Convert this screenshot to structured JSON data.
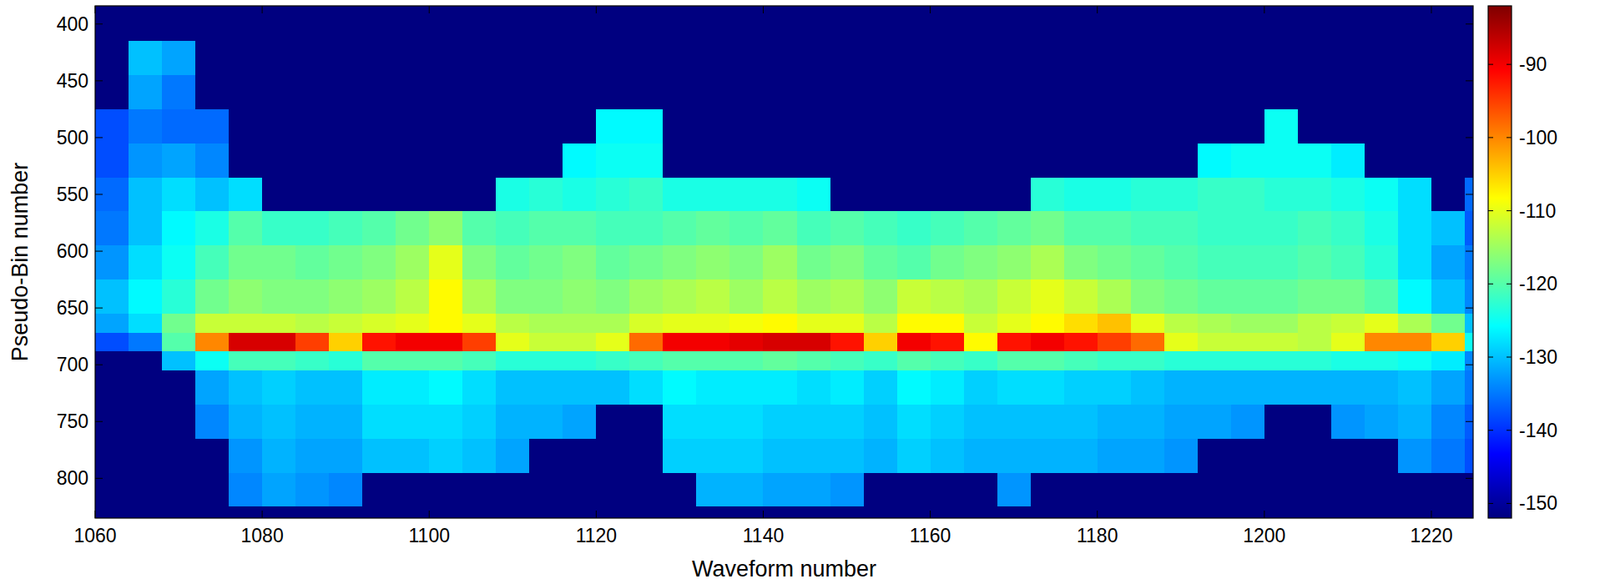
{
  "chart_data": {
    "type": "heatmap",
    "x_label": "Waveform number",
    "y_label": "Pseudo-Bin number",
    "xlim": [
      1060,
      1225
    ],
    "ylim": [
      835,
      384
    ],
    "xticks": [
      1060,
      1080,
      1100,
      1120,
      1140,
      1160,
      1180,
      1200,
      1220
    ],
    "yticks": [
      400,
      450,
      500,
      550,
      600,
      650,
      700,
      750,
      800
    ],
    "clim": [
      -152,
      -82
    ],
    "cticks": [
      -90,
      -100,
      -110,
      -120,
      -130,
      -140,
      -150
    ],
    "x_edges": [
      1060,
      1064,
      1068,
      1072,
      1076,
      1080,
      1084,
      1088,
      1092,
      1096,
      1100,
      1104,
      1108,
      1112,
      1116,
      1120,
      1124,
      1128,
      1132,
      1136,
      1140,
      1144,
      1148,
      1152,
      1156,
      1160,
      1164,
      1168,
      1172,
      1176,
      1180,
      1184,
      1188,
      1192,
      1196,
      1200,
      1204,
      1208,
      1212,
      1216,
      1220,
      1224,
      1228
    ],
    "y_edges": [
      384,
      415,
      445,
      475,
      505,
      535,
      565,
      595,
      625,
      655,
      672,
      688,
      705,
      735,
      765,
      795,
      825,
      835
    ],
    "z": [
      [
        -152,
        -152,
        -152,
        -152,
        -152,
        -152,
        -152,
        -152,
        -152,
        -152,
        -152,
        -152,
        -152,
        -152,
        -152,
        -152,
        -152,
        -152,
        -152,
        -152,
        -152,
        -152,
        -152,
        -152,
        -152,
        -152,
        -152,
        -152,
        -152,
        -152,
        -152,
        -152,
        -152,
        -152,
        -152,
        -152,
        -152,
        -152,
        -152,
        -152,
        -152,
        -152
      ],
      [
        -152,
        -130,
        -132,
        -152,
        -152,
        -152,
        -152,
        -152,
        -152,
        -152,
        -152,
        -152,
        -152,
        -152,
        -152,
        -152,
        -152,
        -152,
        -152,
        -152,
        -152,
        -152,
        -152,
        -152,
        -152,
        -152,
        -152,
        -152,
        -152,
        -152,
        -152,
        -152,
        -152,
        -152,
        -152,
        -152,
        -152,
        -152,
        -152,
        -152,
        -152,
        -152
      ],
      [
        -152,
        -132,
        -135,
        -152,
        -152,
        -152,
        -152,
        -152,
        -152,
        -152,
        -152,
        -152,
        -152,
        -152,
        -152,
        -152,
        -152,
        -152,
        -152,
        -152,
        -152,
        -152,
        -152,
        -152,
        -152,
        -152,
        -152,
        -152,
        -152,
        -152,
        -152,
        -152,
        -152,
        -152,
        -152,
        -152,
        -152,
        -152,
        -152,
        -152,
        -152,
        -152
      ],
      [
        -138,
        -135,
        -136,
        -136,
        -152,
        -152,
        -152,
        -152,
        -152,
        -152,
        -152,
        -152,
        -152,
        -152,
        -152,
        -126,
        -126,
        -152,
        -152,
        -152,
        -152,
        -152,
        -152,
        -152,
        -152,
        -152,
        -152,
        -152,
        -152,
        -152,
        -152,
        -152,
        -152,
        -152,
        -152,
        -125,
        -152,
        -152,
        -152,
        -152,
        -152,
        -152
      ],
      [
        -138,
        -133,
        -132,
        -134,
        -152,
        -152,
        -152,
        -152,
        -152,
        -152,
        -152,
        -152,
        -152,
        -152,
        -126,
        -125,
        -125,
        -152,
        -152,
        -152,
        -152,
        -152,
        -152,
        -152,
        -152,
        -152,
        -152,
        -152,
        -152,
        -152,
        -152,
        -152,
        -152,
        -126,
        -125,
        -125,
        -125,
        -127,
        -152,
        -152,
        -152,
        -152
      ],
      [
        -136,
        -130,
        -128,
        -130,
        -128,
        -152,
        -152,
        -152,
        -152,
        -152,
        -152,
        -152,
        -124,
        -123,
        -124,
        -123,
        -122,
        -124,
        -124,
        -124,
        -124,
        -125,
        -152,
        -152,
        -152,
        -152,
        -152,
        -152,
        -123,
        -124,
        -124,
        -123,
        -123,
        -122,
        -122,
        -123,
        -123,
        -124,
        -125,
        -128,
        -152,
        -136
      ],
      [
        -135,
        -130,
        -126,
        -124,
        -120,
        -122,
        -122,
        -121,
        -120,
        -118,
        -116,
        -120,
        -121,
        -120,
        -120,
        -121,
        -121,
        -120,
        -119,
        -120,
        -119,
        -121,
        -120,
        -121,
        -122,
        -121,
        -120,
        -119,
        -118,
        -120,
        -120,
        -121,
        -121,
        -122,
        -122,
        -122,
        -121,
        -122,
        -124,
        -128,
        -130,
        -137
      ],
      [
        -133,
        -128,
        -125,
        -121,
        -118,
        -118,
        -119,
        -118,
        -117,
        -115,
        -110,
        -117,
        -119,
        -118,
        -117,
        -119,
        -118,
        -117,
        -116,
        -117,
        -115,
        -118,
        -117,
        -119,
        -120,
        -118,
        -117,
        -116,
        -114,
        -117,
        -118,
        -119,
        -120,
        -121,
        -121,
        -121,
        -120,
        -121,
        -123,
        -128,
        -132,
        -135
      ],
      [
        -130,
        -126,
        -123,
        -118,
        -116,
        -117,
        -117,
        -116,
        -115,
        -113,
        -108,
        -114,
        -117,
        -117,
        -116,
        -117,
        -115,
        -114,
        -113,
        -115,
        -113,
        -115,
        -114,
        -116,
        -112,
        -113,
        -114,
        -112,
        -110,
        -112,
        -114,
        -117,
        -118,
        -119,
        -119,
        -119,
        -118,
        -118,
        -120,
        -126,
        -130,
        -134
      ],
      [
        -132,
        -128,
        -118,
        -112,
        -112,
        -112,
        -113,
        -112,
        -111,
        -110,
        -108,
        -110,
        -113,
        -114,
        -114,
        -114,
        -111,
        -110,
        -110,
        -109,
        -108,
        -110,
        -110,
        -113,
        -108,
        -108,
        -112,
        -110,
        -108,
        -106,
        -104,
        -110,
        -113,
        -114,
        -115,
        -115,
        -113,
        -112,
        -110,
        -114,
        -118,
        -130
      ],
      [
        -138,
        -135,
        -120,
        -100,
        -88,
        -88,
        -95,
        -105,
        -92,
        -90,
        -90,
        -95,
        -110,
        -112,
        -112,
        -110,
        -98,
        -90,
        -90,
        -89,
        -88,
        -88,
        -92,
        -105,
        -90,
        -92,
        -108,
        -92,
        -90,
        -92,
        -95,
        -98,
        -110,
        -112,
        -112,
        -112,
        -113,
        -110,
        -100,
        -100,
        -105,
        -125
      ],
      [
        -152,
        -152,
        -130,
        -125,
        -121,
        -121,
        -122,
        -123,
        -120,
        -120,
        -120,
        -121,
        -123,
        -123,
        -123,
        -122,
        -121,
        -120,
        -120,
        -120,
        -119,
        -120,
        -121,
        -122,
        -120,
        -121,
        -122,
        -120,
        -120,
        -121,
        -122,
        -122,
        -123,
        -123,
        -123,
        -123,
        -123,
        -124,
        -124,
        -125,
        -127,
        -134
      ],
      [
        -152,
        -152,
        -152,
        -132,
        -130,
        -129,
        -130,
        -130,
        -127,
        -127,
        -126,
        -128,
        -130,
        -130,
        -130,
        -130,
        -128,
        -126,
        -127,
        -127,
        -127,
        -128,
        -127,
        -129,
        -126,
        -127,
        -129,
        -128,
        -128,
        -129,
        -129,
        -130,
        -131,
        -131,
        -131,
        -131,
        -131,
        -131,
        -131,
        -130,
        -132,
        -135
      ],
      [
        -152,
        -152,
        -152,
        -134,
        -131,
        -130,
        -131,
        -131,
        -128,
        -128,
        -128,
        -129,
        -131,
        -131,
        -132,
        -152,
        -152,
        -128,
        -128,
        -128,
        -129,
        -129,
        -129,
        -130,
        -128,
        -129,
        -130,
        -130,
        -130,
        -130,
        -131,
        -131,
        -132,
        -132,
        -133,
        -152,
        -152,
        -133,
        -132,
        -131,
        -134,
        -137
      ],
      [
        -152,
        -152,
        -152,
        -152,
        -133,
        -131,
        -132,
        -132,
        -130,
        -130,
        -129,
        -130,
        -132,
        -152,
        -152,
        -152,
        -152,
        -129,
        -129,
        -129,
        -130,
        -130,
        -130,
        -131,
        -129,
        -130,
        -131,
        -131,
        -131,
        -131,
        -132,
        -132,
        -133,
        -152,
        -152,
        -152,
        -152,
        -152,
        -152,
        -133,
        -135,
        -138
      ],
      [
        -152,
        -152,
        -152,
        -152,
        -134,
        -132,
        -133,
        -134,
        -152,
        -152,
        -152,
        -152,
        -152,
        -152,
        -152,
        -152,
        -152,
        -152,
        -131,
        -131,
        -132,
        -132,
        -133,
        -152,
        -152,
        -152,
        -152,
        -133,
        -152,
        -152,
        -152,
        -152,
        -152,
        -152,
        -152,
        -152,
        -152,
        -152,
        -152,
        -152,
        -152,
        -152
      ],
      [
        -152,
        -152,
        -152,
        -152,
        -152,
        -152,
        -152,
        -152,
        -152,
        -152,
        -152,
        -152,
        -152,
        -152,
        -152,
        -152,
        -152,
        -152,
        -152,
        -152,
        -152,
        -152,
        -152,
        -152,
        -152,
        -152,
        -152,
        -152,
        -152,
        -152,
        -152,
        -152,
        -152,
        -152,
        -152,
        -152,
        -152,
        -152,
        -152,
        -152,
        -152,
        -152
      ]
    ]
  }
}
